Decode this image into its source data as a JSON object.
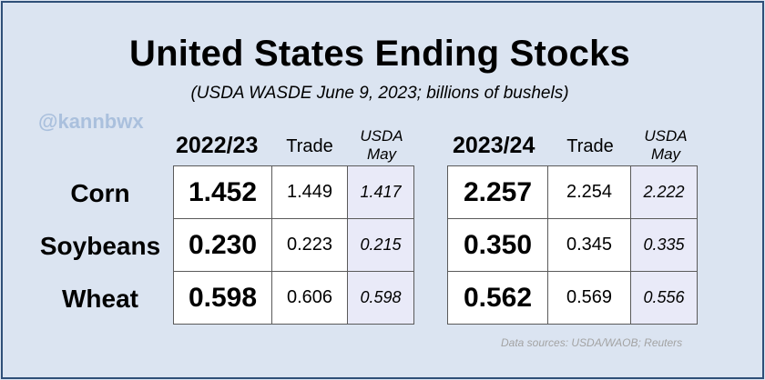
{
  "title": "United States Ending Stocks",
  "subtitle": "(USDA WASDE June 9, 2023; billions of bushels)",
  "watermark": "@kannbwx",
  "source": "Data sources: USDA/WAOB; Reuters",
  "commodities": [
    "Corn",
    "Soybeans",
    "Wheat"
  ],
  "columns": {
    "trade": "Trade",
    "usda_line1": "USDA",
    "usda_line2": "May"
  },
  "chart_data": {
    "type": "table",
    "title": "United States Ending Stocks",
    "subtitle": "(USDA WASDE June 9, 2023; billions of bushels)",
    "rows": [
      "Corn",
      "Soybeans",
      "Wheat"
    ],
    "tables": [
      {
        "year": "2022/23",
        "values": [
          {
            "usda": "1.452",
            "trade": "1.449",
            "may": "1.417"
          },
          {
            "usda": "0.230",
            "trade": "0.223",
            "may": "0.215"
          },
          {
            "usda": "0.598",
            "trade": "0.606",
            "may": "0.598"
          }
        ]
      },
      {
        "year": "2023/24",
        "values": [
          {
            "usda": "2.257",
            "trade": "2.254",
            "may": "2.222"
          },
          {
            "usda": "0.350",
            "trade": "0.345",
            "may": "0.335"
          },
          {
            "usda": "0.562",
            "trade": "0.569",
            "may": "0.556"
          }
        ]
      }
    ]
  }
}
